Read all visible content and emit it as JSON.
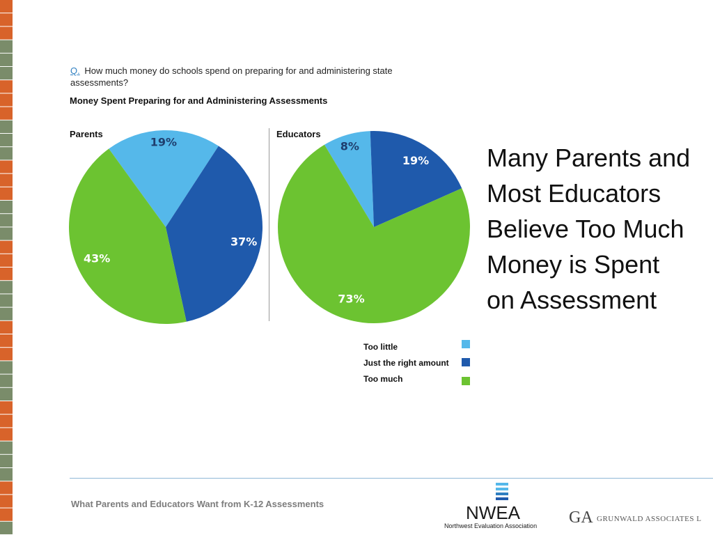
{
  "question": {
    "marker": "Q.",
    "text": "How much money do schools spend on preparing for and administering state assessments?"
  },
  "headline_lines": [
    "Many Parents and",
    "Most Educators",
    "Believe Too Much",
    "Money is Spent",
    "on Assessment"
  ],
  "footer": {
    "text": "What Parents and Educators Want from K-12 Assessments",
    "nwea_logo_text": "NWEA",
    "nwea_logo_subtitle": "Northwest Evaluation Association",
    "ga_logo_text": "GA",
    "ga_logo_name": "Grunwald Associates LLC"
  },
  "colors": {
    "too_little": "#55b8ea",
    "just_right": "#1f5aac",
    "too_much": "#6cc331",
    "label_dark": "#1f3e6e",
    "label_white": "#ffffff"
  },
  "chart_data": {
    "type": "pie",
    "title": "Money Spent Preparing for and Administering Assessments",
    "legend_position": "bottom-center",
    "legend": [
      {
        "label": "Too little",
        "color": "#55b8ea"
      },
      {
        "label": "Just the right amount",
        "color": "#1f5aac"
      },
      {
        "label": "Too much",
        "color": "#6cc331"
      }
    ],
    "charts": [
      {
        "name": "Parents",
        "slices": [
          {
            "category": "Too little",
            "value": 19,
            "label": "19%"
          },
          {
            "category": "Just the right amount",
            "value": 37,
            "label": "37%"
          },
          {
            "category": "Too much",
            "value": 43,
            "label": "43%"
          }
        ]
      },
      {
        "name": "Educators",
        "slices": [
          {
            "category": "Too little",
            "value": 8,
            "label": "8%"
          },
          {
            "category": "Just the right amount",
            "value": 19,
            "label": "19%"
          },
          {
            "category": "Too much",
            "value": 73,
            "label": "73%"
          }
        ]
      }
    ]
  }
}
